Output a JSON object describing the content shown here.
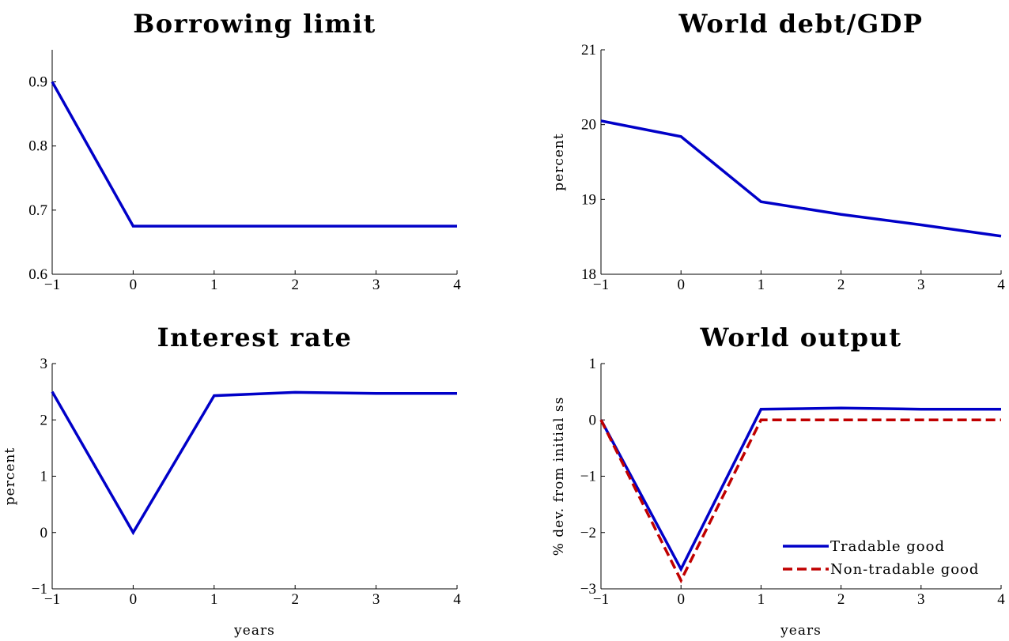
{
  "chart_data": [
    {
      "type": "line",
      "title": "Borrowing limit",
      "xlabel": "",
      "ylabel": "",
      "xlim": [
        -1,
        4
      ],
      "ylim": [
        0.6,
        0.95
      ],
      "xticks": [
        "−1",
        "0",
        "1",
        "2",
        "3",
        "4"
      ],
      "yticks": [
        "0.6",
        "0.7",
        "0.8",
        "0.9"
      ],
      "x": [
        -1,
        0,
        1,
        2,
        3,
        4
      ],
      "series": [
        {
          "values": [
            0.9,
            0.675,
            0.675,
            0.675,
            0.675,
            0.675
          ],
          "color": "#0000c8",
          "dash": false
        }
      ],
      "legend": []
    },
    {
      "type": "line",
      "title": "World debt/GDP",
      "xlabel": "",
      "ylabel": "percent",
      "xlim": [
        -1,
        4
      ],
      "ylim": [
        18,
        21
      ],
      "xticks": [
        "−1",
        "0",
        "1",
        "2",
        "3",
        "4"
      ],
      "yticks": [
        "18",
        "19",
        "20",
        "21"
      ],
      "x": [
        -1,
        0,
        1,
        2,
        3,
        4
      ],
      "series": [
        {
          "values": [
            20.05,
            19.84,
            18.97,
            18.8,
            18.66,
            18.51
          ],
          "color": "#0000c8",
          "dash": false
        }
      ],
      "legend": []
    },
    {
      "type": "line",
      "title": "Interest rate",
      "xlabel": "years",
      "ylabel": "percent",
      "xlim": [
        -1,
        4
      ],
      "ylim": [
        -1,
        3
      ],
      "xticks": [
        "−1",
        "0",
        "1",
        "2",
        "3",
        "4"
      ],
      "yticks": [
        "−1",
        "0",
        "1",
        "2",
        "3"
      ],
      "x": [
        -1,
        0,
        1,
        2,
        3,
        4
      ],
      "series": [
        {
          "values": [
            2.5,
            0.0,
            2.43,
            2.49,
            2.47,
            2.47
          ],
          "color": "#0000c8",
          "dash": false
        }
      ],
      "legend": []
    },
    {
      "type": "line",
      "title": "World output",
      "xlabel": "years",
      "ylabel": "% dev. from initial ss",
      "xlim": [
        -1,
        4
      ],
      "ylim": [
        -3,
        1
      ],
      "xticks": [
        "−1",
        "0",
        "1",
        "2",
        "3",
        "4"
      ],
      "yticks": [
        "−3",
        "−2",
        "−1",
        "0",
        "1"
      ],
      "x": [
        -1,
        0,
        1,
        2,
        3,
        4
      ],
      "series": [
        {
          "name": "Tradable good",
          "values": [
            0.0,
            -2.65,
            0.19,
            0.21,
            0.19,
            0.19
          ],
          "color": "#0000c8",
          "dash": false
        },
        {
          "name": "Non-tradable good",
          "values": [
            0.0,
            -2.85,
            0.0,
            0.0,
            0.0,
            0.0
          ],
          "color": "#c00000",
          "dash": true
        }
      ],
      "legend": [
        "Tradable good",
        "Non-tradable good"
      ],
      "legend_position": "bottom-right"
    }
  ]
}
